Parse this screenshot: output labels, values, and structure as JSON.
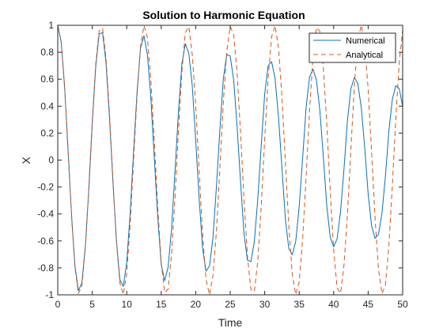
{
  "chart_data": {
    "type": "line",
    "title": "Solution to Harmonic Equation",
    "xlabel": "Time",
    "ylabel": "X",
    "xlim": [
      0,
      50
    ],
    "ylim": [
      -1,
      1
    ],
    "xticks": [
      0,
      5,
      10,
      15,
      20,
      25,
      30,
      35,
      40,
      45,
      50
    ],
    "yticks": [
      -1,
      -0.8,
      -0.6,
      -0.4,
      -0.2,
      0,
      0.2,
      0.4,
      0.6,
      0.8,
      1
    ],
    "grid": false,
    "legend_position": "top-right",
    "x": [
      0,
      0.5,
      1,
      1.5,
      2,
      2.5,
      3,
      3.5,
      4,
      4.5,
      5,
      5.5,
      6,
      6.5,
      7,
      7.5,
      8,
      8.5,
      9,
      9.5,
      10,
      10.5,
      11,
      11.5,
      12,
      12.5,
      13,
      13.5,
      14,
      14.5,
      15,
      15.5,
      16,
      16.5,
      17,
      17.5,
      18,
      18.5,
      19,
      19.5,
      20,
      20.5,
      21,
      21.5,
      22,
      22.5,
      23,
      23.5,
      24,
      24.5,
      25,
      25.5,
      26,
      26.5,
      27,
      27.5,
      28,
      28.5,
      29,
      29.5,
      30,
      30.5,
      31,
      31.5,
      32,
      32.5,
      33,
      33.5,
      34,
      34.5,
      35,
      35.5,
      36,
      36.5,
      37,
      37.5,
      38,
      38.5,
      39,
      39.5,
      40,
      40.5,
      41,
      41.5,
      42,
      42.5,
      43,
      43.5,
      44,
      44.5,
      45,
      45.5,
      46,
      46.5,
      47,
      47.5,
      48,
      48.5,
      49,
      49.5,
      50
    ],
    "series": [
      {
        "name": "Numerical",
        "color": "#0072BD",
        "style": "solid",
        "values": [
          1.0,
          0.876,
          0.538,
          0.07,
          -0.41,
          -0.789,
          -0.97,
          -0.911,
          -0.64,
          -0.221,
          0.265,
          0.687,
          0.935,
          0.946,
          0.72,
          0.315,
          -0.161,
          -0.593,
          -0.886,
          -0.938,
          -0.759,
          -0.394,
          0.07,
          0.507,
          0.831,
          0.922,
          0.783,
          0.459,
          0.01,
          -0.427,
          -0.774,
          -0.895,
          -0.794,
          -0.511,
          -0.081,
          0.358,
          0.716,
          0.862,
          0.794,
          0.551,
          0.146,
          -0.287,
          -0.658,
          -0.824,
          -0.786,
          -0.578,
          -0.2,
          0.222,
          0.601,
          0.784,
          0.772,
          0.595,
          0.248,
          -0.162,
          -0.545,
          -0.743,
          -0.753,
          -0.605,
          -0.289,
          0.108,
          0.49,
          0.701,
          0.73,
          0.607,
          0.32,
          -0.058,
          -0.438,
          -0.658,
          -0.703,
          -0.603,
          -0.346,
          0.014,
          0.388,
          0.615,
          0.674,
          0.595,
          0.366,
          0.026,
          -0.339,
          -0.572,
          -0.644,
          -0.583,
          -0.38,
          -0.061,
          0.294,
          0.53,
          0.612,
          0.568,
          0.39,
          0.093,
          -0.252,
          -0.489,
          -0.581,
          -0.55,
          -0.395,
          -0.121,
          0.213,
          0.45,
          0.551,
          0.531,
          0.398
        ]
      },
      {
        "name": "Analytical",
        "color": "#D95319",
        "style": "dashed",
        "values": [
          1.0,
          0.878,
          0.54,
          0.071,
          -0.416,
          -0.801,
          -0.99,
          -0.936,
          -0.654,
          -0.211,
          0.284,
          0.709,
          0.96,
          0.977,
          0.754,
          0.347,
          -0.146,
          -0.602,
          -0.911,
          -0.997,
          -0.839,
          -0.476,
          0.004,
          0.483,
          0.844,
          0.998,
          0.907,
          0.592,
          0.137,
          -0.355,
          -0.76,
          -0.983,
          -0.958,
          -0.696,
          -0.275,
          0.219,
          0.66,
          0.946,
          0.989,
          0.783,
          0.408,
          -0.079,
          -0.548,
          -0.886,
          -1.0,
          -0.859,
          -0.533,
          -0.064,
          0.424,
          0.807,
          0.991,
          0.931,
          0.647,
          0.203,
          -0.292,
          -0.714,
          -0.962,
          -0.976,
          -0.748,
          -0.339,
          0.154,
          0.608,
          0.914,
          0.997,
          0.834,
          0.469,
          -0.013,
          -0.49,
          -0.848,
          -0.998,
          -0.904,
          -0.585,
          -0.128,
          0.363,
          0.765,
          0.984,
          0.955,
          0.689,
          0.267,
          -0.227,
          -0.667,
          -0.949,
          -0.988,
          -0.778,
          -0.4,
          0.088,
          0.555,
          0.889,
          1.0,
          0.854,
          0.526,
          0.055,
          -0.431,
          -0.811,
          -0.992,
          -0.928,
          -0.64,
          -0.195,
          0.3,
          0.72,
          0.965
        ]
      }
    ]
  }
}
